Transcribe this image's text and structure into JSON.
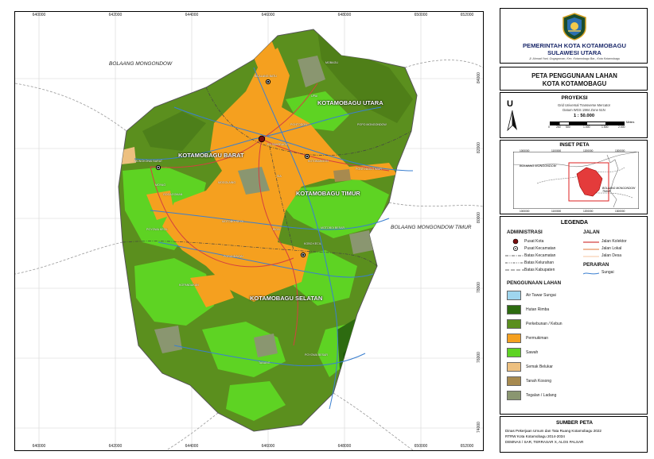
{
  "map": {
    "grid_x": [
      "640000",
      "642000",
      "644000",
      "646000",
      "648000",
      "650000",
      "652000"
    ],
    "grid_y": [
      "84000",
      "82000",
      "80000",
      "78000",
      "76000",
      "74000"
    ],
    "regions": [
      {
        "id": "kotamobagu-utara",
        "label": "KOTAMOBAGU UTARA"
      },
      {
        "id": "kotamobagu-barat",
        "label": "KOTAMOBAGU BARAT"
      },
      {
        "id": "kotamobagu-timur",
        "label": "KOTAMOBAGU TIMUR"
      },
      {
        "id": "kotamobagu-selatan",
        "label": "KOTAMOBAGU SELATAN"
      }
    ],
    "neighbors": [
      {
        "id": "bolaang-mongondow",
        "label": "BOLAANG MONGONDOW"
      },
      {
        "id": "bolaang-mongondow-timur",
        "label": "BOLAANG MONGONDOW TIMUR"
      }
    ],
    "villages": [
      "BILALANG BATU",
      "MOBAGU",
      "UPAI",
      "POYOWA KECIL",
      "KOTAMOBAGU",
      "KOTOBANGON",
      "MONGKONAI BARAT",
      "MOGOLAING",
      "GOGAGOMAN",
      "MOTOBOI KECIL",
      "KOBO KECIL",
      "POBUNDAYAN",
      "KOPANDAKAN",
      "POYOWA BESAR",
      "TABANG",
      "MOYAG",
      "SIA",
      "BIGA",
      "POPO MONGONDOW",
      "PONTODON",
      "PONTODON TIMUR",
      "MOTOBOI BESAR"
    ],
    "land_use_colors": {
      "kebun": "#5b8f1e",
      "permukiman": "#f5a01f",
      "sawah": "#5ed323",
      "tegalan": "#8a9670",
      "hutan": "#2d6b10",
      "semak": "#edc080",
      "tanah_kosong": "#a78a4f",
      "air": "#9fd6ee"
    }
  },
  "header": {
    "logo_icon": "kotamobagu-emblem-icon",
    "title_line1": "PEMERINTAH KOTA KOTAMOBAGU",
    "title_line2": "SULAWESI UTARA",
    "address": "Jl. Ahmad Yani, Gogagoman, Kec. Kotamobagu Bar., Kota Kotamobagu"
  },
  "map_title": {
    "line1": "PETA PENGGUNAAN LAHAN",
    "line2": "KOTA KOTAMOBAGU"
  },
  "projection": {
    "heading": "PROYEKSI",
    "system_line1": "Grid Universal Transverse Mercator",
    "system_line2": "Datum WGS 1984 Zone 51N",
    "scale": "1 : 50.000",
    "scalebar_ticks": [
      "0",
      "250",
      "500",
      "1.000",
      "1.500",
      "2.000"
    ],
    "scalebar_unit": "Meters",
    "north_symbol": "U"
  },
  "inset": {
    "heading": "INSET PETA",
    "top_ticks": [
      "1000000",
      "1100000",
      "1200000",
      "1300000"
    ],
    "bottom_ticks": [
      "1000000",
      "1100000",
      "1200000",
      "1300000"
    ],
    "label_bm": "BOLAANG MONGONDOW",
    "label_bmt": "BOLAANG MONGONDOW TIMUR"
  },
  "legend": {
    "heading": "LEGENDA",
    "administrasi": {
      "heading": "ADMINISTRASI",
      "items": [
        "Pusat Kota",
        "Pusat Kecamatan",
        "Batas Kecamatan",
        "Batas Kelurahan",
        "Batas Kabupaten"
      ]
    },
    "jalan": {
      "heading": "JALAN",
      "items": [
        "Jalan Kolektor",
        "Jalan Lokal",
        "Jalan Desa"
      ]
    },
    "perairan": {
      "heading": "PERAIRAN",
      "items": [
        "Sungai"
      ]
    },
    "penggunaan_lahan": {
      "heading": "PENGGUNAAN LAHAN",
      "items": [
        {
          "label": "Air Tawar Sungai",
          "color": "#9fd6ee"
        },
        {
          "label": "Hutan Rimba",
          "color": "#2d6b10"
        },
        {
          "label": "Perkebunan / Kebun",
          "color": "#5b8f1e"
        },
        {
          "label": "Permukiman",
          "color": "#f5a01f"
        },
        {
          "label": "Sawah",
          "color": "#5ed323"
        },
        {
          "label": "Semak Belukar",
          "color": "#edc080"
        },
        {
          "label": "Tanah Kosong",
          "color": "#a78a4f"
        },
        {
          "label": "Tegalan / Ladang",
          "color": "#8a9670"
        }
      ]
    }
  },
  "source": {
    "heading": "SUMBER PETA",
    "line1": "Dinas Pekerjaan Umum dan Tata Ruang Kotamobagu 2022",
    "line2": "RTRW Kota Kotamobagu 2014-2034",
    "line3": "DEMNAS / SAR, TERRASAR X, ALOS PALSAR"
  }
}
